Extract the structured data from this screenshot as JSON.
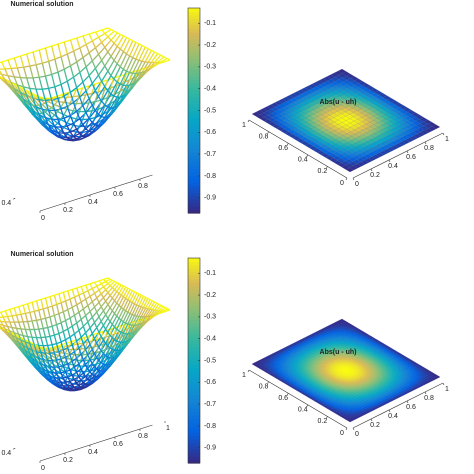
{
  "chart_data": [
    {
      "type": "surface",
      "title": "Numerical solution",
      "xticks": [
        0,
        0.2,
        0.4,
        0.6,
        0.8
      ],
      "yticks": [
        0.4
      ],
      "clim": [
        -0.97,
        -0.03
      ],
      "cticks": [
        -0.1,
        -0.2,
        -0.3,
        -0.4,
        -0.5,
        -0.6,
        -0.7,
        -0.8,
        -0.9
      ]
    },
    {
      "type": "flat-surface",
      "title": "Abs(u - uh)",
      "xticks": [
        0,
        0.2,
        0.4,
        0.6,
        0.8,
        1
      ],
      "yticks": [
        0,
        0.2,
        0.4,
        0.6,
        0.8,
        1
      ]
    },
    {
      "type": "surface",
      "title": "Numerical solution",
      "xticks": [
        0,
        0.2,
        0.4,
        0.6,
        0.8,
        1
      ],
      "yticks": [
        0.4
      ],
      "clim": [
        -0.97,
        -0.03
      ],
      "cticks": [
        -0.1,
        -0.2,
        -0.3,
        -0.4,
        -0.5,
        -0.6,
        -0.7,
        -0.8,
        -0.9
      ]
    },
    {
      "type": "flat-surface",
      "title": "Abs(u - uh)",
      "xticks": [
        0,
        0.2,
        0.4,
        0.6,
        0.8,
        1
      ],
      "yticks": [
        0,
        0.2,
        0.4,
        0.6,
        0.8,
        1
      ]
    }
  ]
}
